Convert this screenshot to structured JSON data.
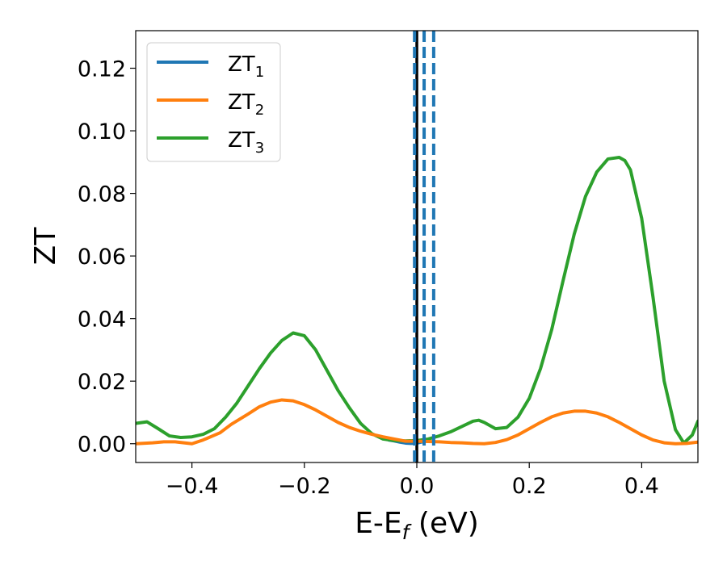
{
  "chart_data": {
    "type": "line",
    "title": "",
    "xlabel_main": "E-E",
    "xlabel_sub": "f",
    "xlabel_unit": " (eV)",
    "ylabel": "ZT",
    "xlim": [
      -0.5,
      0.5
    ],
    "ylim": [
      -0.006,
      0.132
    ],
    "xticks": [
      -0.4,
      -0.2,
      0.0,
      0.2,
      0.4
    ],
    "xtick_labels": [
      "−0.4",
      "−0.2",
      "0.0",
      "0.2",
      "0.4"
    ],
    "yticks": [
      0.0,
      0.02,
      0.04,
      0.06,
      0.08,
      0.1,
      0.12
    ],
    "ytick_labels": [
      "0.00",
      "0.02",
      "0.04",
      "0.06",
      "0.08",
      "0.10",
      "0.12"
    ],
    "legend_position": "top-left",
    "series": [
      {
        "name_main": "ZT",
        "name_sub": "1",
        "color": "#1f77b4",
        "x": [
          -0.05,
          -0.04,
          -0.03,
          -0.02,
          -0.01,
          0.0,
          0.005,
          0.01
        ],
        "y": [
          0.0012,
          0.0009,
          0.0005,
          0.0002,
          0.0001,
          0.0002,
          0.0004,
          0.0006
        ]
      },
      {
        "name_main": "ZT",
        "name_sub": "2",
        "color": "#ff7f0e",
        "x": [
          -0.5,
          -0.47,
          -0.45,
          -0.43,
          -0.4,
          -0.38,
          -0.35,
          -0.33,
          -0.3,
          -0.28,
          -0.26,
          -0.24,
          -0.22,
          -0.2,
          -0.18,
          -0.16,
          -0.14,
          -0.12,
          -0.1,
          -0.08,
          -0.06,
          -0.04,
          -0.02,
          0.0,
          0.02,
          0.04,
          0.06,
          0.08,
          0.1,
          0.12,
          0.14,
          0.16,
          0.18,
          0.2,
          0.22,
          0.24,
          0.26,
          0.28,
          0.3,
          0.32,
          0.34,
          0.36,
          0.38,
          0.4,
          0.42,
          0.44,
          0.46,
          0.48,
          0.5
        ],
        "y": [
          0.0,
          0.0003,
          0.0006,
          0.0006,
          0.0,
          0.0012,
          0.0035,
          0.0062,
          0.0095,
          0.0118,
          0.0133,
          0.014,
          0.0137,
          0.0125,
          0.0108,
          0.0088,
          0.0068,
          0.0052,
          0.004,
          0.003,
          0.0022,
          0.0015,
          0.0008,
          0.0008,
          0.0007,
          0.0006,
          0.0004,
          0.0003,
          0.0001,
          0.0,
          0.0004,
          0.0013,
          0.0028,
          0.0048,
          0.0068,
          0.0086,
          0.0098,
          0.0104,
          0.0104,
          0.0098,
          0.0086,
          0.0068,
          0.0048,
          0.0028,
          0.0012,
          0.0003,
          0.0,
          0.0001,
          0.0005
        ]
      },
      {
        "name_main": "ZT",
        "name_sub": "3",
        "color": "#2ca02c",
        "x": [
          -0.5,
          -0.48,
          -0.46,
          -0.44,
          -0.42,
          -0.4,
          -0.38,
          -0.36,
          -0.34,
          -0.32,
          -0.3,
          -0.28,
          -0.26,
          -0.24,
          -0.22,
          -0.2,
          -0.18,
          -0.16,
          -0.14,
          -0.12,
          -0.1,
          -0.08,
          -0.06,
          -0.04,
          -0.02,
          0.0,
          0.02,
          0.04,
          0.06,
          0.08,
          0.1,
          0.11,
          0.12,
          0.14,
          0.16,
          0.18,
          0.2,
          0.22,
          0.24,
          0.26,
          0.28,
          0.3,
          0.32,
          0.34,
          0.36,
          0.37,
          0.38,
          0.4,
          0.42,
          0.44,
          0.46,
          0.475,
          0.49,
          0.5
        ],
        "y": [
          0.0065,
          0.007,
          0.0048,
          0.0025,
          0.002,
          0.0022,
          0.003,
          0.0048,
          0.0085,
          0.013,
          0.0185,
          0.024,
          0.029,
          0.033,
          0.0354,
          0.0345,
          0.03,
          0.0235,
          0.017,
          0.0115,
          0.0065,
          0.0032,
          0.0015,
          0.001,
          0.0009,
          0.001,
          0.0015,
          0.0025,
          0.0038,
          0.0055,
          0.0072,
          0.0075,
          0.0068,
          0.0048,
          0.0052,
          0.0085,
          0.0145,
          0.024,
          0.0365,
          0.052,
          0.067,
          0.079,
          0.0868,
          0.091,
          0.0915,
          0.0905,
          0.0875,
          0.072,
          0.047,
          0.02,
          0.0045,
          0.0002,
          0.0028,
          0.0072
        ]
      }
    ],
    "vlines": [
      {
        "x": 0.0,
        "color": "#000000",
        "style": "solid"
      },
      {
        "x": -0.004,
        "color": "#1f77b4",
        "style": "dashed"
      },
      {
        "x": 0.013,
        "color": "#1f77b4",
        "style": "dashed"
      },
      {
        "x": 0.03,
        "color": "#1f77b4",
        "style": "dashed"
      }
    ]
  }
}
